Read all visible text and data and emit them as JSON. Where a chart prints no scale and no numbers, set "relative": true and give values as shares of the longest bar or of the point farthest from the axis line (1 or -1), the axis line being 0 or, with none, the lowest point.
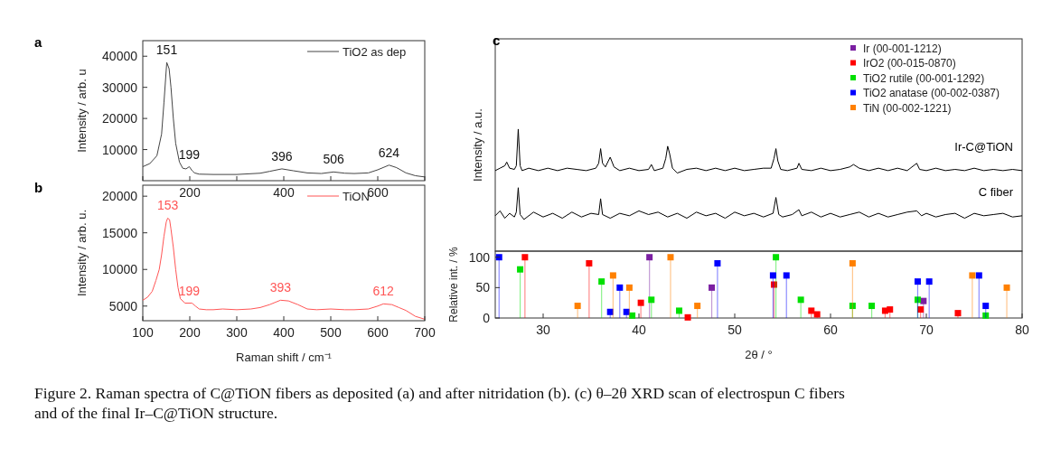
{
  "chart_data": [
    {
      "type": "line",
      "title": "a",
      "ylabel": "Intensity / arb. u",
      "xlim": [
        100,
        700
      ],
      "ylim": [
        0,
        45000
      ],
      "xticks": [
        {
          "value": 100,
          "label": null
        },
        200,
        {
          "value": 300,
          "label": null
        },
        400,
        {
          "value": 500,
          "label": null
        },
        600,
        {
          "value": 700,
          "label": null
        }
      ],
      "yticks": [
        10000,
        20000,
        30000,
        40000
      ],
      "legend": "top right",
      "marker": "none",
      "line_style": "solid",
      "series": [
        {
          "name": "TiO2 as dep",
          "color": "#444444",
          "x": [
            100,
            115,
            130,
            140,
            145,
            151,
            156,
            160,
            165,
            170,
            178,
            185,
            192,
            199,
            205,
            210,
            220,
            250,
            300,
            350,
            370,
            396,
            420,
            450,
            480,
            506,
            530,
            550,
            580,
            600,
            624,
            640,
            660,
            680,
            700
          ],
          "values": [
            4500,
            5500,
            8000,
            15000,
            25000,
            38000,
            36000,
            30000,
            20000,
            12000,
            6000,
            4000,
            3800,
            4500,
            3200,
            2500,
            2100,
            2000,
            2000,
            2400,
            3000,
            3800,
            3200,
            2500,
            2300,
            2800,
            2400,
            2300,
            2500,
            3500,
            5000,
            4200,
            2500,
            1600,
            1200
          ]
        }
      ],
      "annotations": [
        {
          "text": "151",
          "x": 151,
          "y": 38000
        },
        {
          "text": "199",
          "x": 199,
          "y": 4500
        },
        {
          "text": "396",
          "x": 396,
          "y": 3800
        },
        {
          "text": "506",
          "x": 506,
          "y": 2800
        },
        {
          "text": "624",
          "x": 624,
          "y": 5000
        }
      ]
    },
    {
      "type": "line",
      "title": "b",
      "xlabel": "Raman shift / cm⁻¹",
      "ylabel": "Intensity / arb. u.",
      "xlim": [
        100,
        700
      ],
      "ylim": [
        3000,
        21500
      ],
      "xticks": [
        100,
        200,
        300,
        400,
        500,
        600,
        700
      ],
      "yticks": [
        5000,
        10000,
        15000,
        20000
      ],
      "legend": "top right",
      "marker": "none",
      "line_style": "solid",
      "series": [
        {
          "name": "TiON",
          "color": "#ff5555",
          "x": [
            100,
            110,
            120,
            128,
            135,
            140,
            145,
            150,
            153,
            157,
            160,
            165,
            170,
            175,
            180,
            190,
            200,
            205,
            212,
            220,
            235,
            250,
            270,
            300,
            330,
            350,
            370,
            393,
            410,
            430,
            450,
            470,
            500,
            530,
            550,
            580,
            600,
            612,
            630,
            645,
            660,
            680,
            700
          ],
          "values": [
            5800,
            6200,
            7000,
            8500,
            10000,
            12000,
            14500,
            16500,
            17000,
            16800,
            15500,
            13000,
            10000,
            7500,
            6000,
            5400,
            5400,
            5400,
            5000,
            4600,
            4500,
            4500,
            4600,
            4500,
            4600,
            4800,
            5200,
            5800,
            5700,
            5200,
            4600,
            4500,
            4600,
            4500,
            4500,
            4600,
            5000,
            5300,
            5200,
            4800,
            4400,
            3600,
            3200
          ]
        }
      ],
      "annotations": [
        {
          "text": "153",
          "x": 153,
          "y": 17000
        },
        {
          "text": "199",
          "x": 199,
          "y": 5400
        },
        {
          "text": "393",
          "x": 393,
          "y": 5800
        },
        {
          "text": "612",
          "x": 612,
          "y": 5300
        }
      ]
    },
    {
      "type": "line",
      "title": "c",
      "ylabel": "Intensity / a.u.",
      "relative": true,
      "xlim": [
        25,
        80
      ],
      "marker": "none",
      "line_style": "solid",
      "series": [
        {
          "name": "Ir-C@TiON",
          "color": "#000000",
          "x": [
            25,
            25.5,
            26,
            26.2,
            26.5,
            27,
            27.2,
            27.4,
            27.6,
            27.8,
            28.5,
            29.5,
            30.5,
            31.5,
            32.5,
            33.5,
            34.5,
            35.5,
            35.8,
            36,
            36.2,
            36.5,
            37,
            37.4,
            38,
            39,
            40,
            41,
            41.3,
            41.6,
            42.5,
            42.8,
            43,
            43.2,
            43.5,
            44,
            45,
            46,
            47,
            48,
            49,
            50,
            51,
            52,
            53,
            53.8,
            54.1,
            54.3,
            54.5,
            54.8,
            55.5,
            56.5,
            56.7,
            57,
            58,
            59,
            60,
            61,
            62,
            62.4,
            63,
            64,
            65,
            66,
            67,
            68,
            69,
            69.3,
            70,
            71,
            72,
            73,
            74,
            75,
            76,
            77,
            78,
            79,
            80
          ],
          "values": [
            0.66,
            0.68,
            0.7,
            0.73,
            0.68,
            0.67,
            0.7,
            1,
            0.7,
            0.66,
            0.68,
            0.66,
            0.68,
            0.66,
            0.68,
            0.67,
            0.66,
            0.68,
            0.72,
            0.84,
            0.72,
            0.69,
            0.77,
            0.69,
            0.66,
            0.68,
            0.66,
            0.67,
            0.71,
            0.66,
            0.68,
            0.76,
            0.86,
            0.8,
            0.68,
            0.64,
            0.67,
            0.68,
            0.66,
            0.68,
            0.66,
            0.68,
            0.66,
            0.67,
            0.68,
            0.68,
            0.76,
            0.84,
            0.74,
            0.67,
            0.66,
            0.68,
            0.72,
            0.67,
            0.66,
            0.68,
            0.66,
            0.67,
            0.69,
            0.71,
            0.68,
            0.66,
            0.68,
            0.66,
            0.68,
            0.66,
            0.72,
            0.67,
            0.66,
            0.68,
            0.66,
            0.67,
            0.66,
            0.68,
            0.66,
            0.67,
            0.66,
            0.67,
            0.66
          ]
        },
        {
          "name": "C fiber",
          "color": "#000000",
          "x": [
            25,
            25.5,
            26,
            26.5,
            27,
            27.2,
            27.4,
            27.6,
            28,
            29,
            30,
            31,
            32,
            33,
            34,
            35,
            35.8,
            36,
            36.2,
            37,
            38,
            39,
            40,
            41,
            42,
            43,
            44,
            45,
            46,
            47,
            48,
            49,
            50,
            51,
            52,
            53,
            54,
            54.3,
            54.6,
            55,
            56,
            56.7,
            57,
            58,
            59,
            60,
            61,
            62,
            63,
            64,
            65,
            66,
            67,
            68,
            69,
            69.5,
            70,
            71,
            72,
            73,
            74,
            75,
            76,
            77,
            78,
            79,
            80
          ],
          "values": [
            0.29,
            0.33,
            0.27,
            0.31,
            0.28,
            0.32,
            0.52,
            0.3,
            0.26,
            0.32,
            0.28,
            0.31,
            0.27,
            0.32,
            0.28,
            0.31,
            0.3,
            0.43,
            0.3,
            0.27,
            0.31,
            0.29,
            0.33,
            0.3,
            0.32,
            0.28,
            0.31,
            0.27,
            0.32,
            0.29,
            0.31,
            0.27,
            0.32,
            0.29,
            0.31,
            0.28,
            0.31,
            0.44,
            0.3,
            0.28,
            0.3,
            0.34,
            0.29,
            0.32,
            0.28,
            0.31,
            0.28,
            0.3,
            0.32,
            0.28,
            0.31,
            0.28,
            0.3,
            0.32,
            0.33,
            0.29,
            0.31,
            0.28,
            0.3,
            0.31,
            0.27,
            0.31,
            0.29,
            0.3,
            0.31,
            0.28,
            0.29
          ]
        }
      ]
    },
    {
      "type": "lollipop",
      "xlabel": "2θ / °",
      "ylabel": "Relative int. / %",
      "xlim": [
        25,
        80
      ],
      "ylim": [
        0,
        110
      ],
      "xticks": [
        30,
        40,
        50,
        60,
        70,
        80
      ],
      "yticks": [
        0,
        50,
        100
      ],
      "legend": "top right",
      "marker": "square",
      "series": [
        {
          "name": "Ir (00-001-1212)",
          "color": "#7b1fa2",
          "x": [
            41.1,
            47.6,
            69.7
          ],
          "values": [
            100,
            50,
            28
          ]
        },
        {
          "name": "IrO2 (00-015-0870)",
          "color": "#ff0000",
          "x": [
            28.1,
            34.8,
            40.2,
            45.1,
            54.1,
            58,
            58.6,
            65.7,
            66.2,
            69.4,
            73.3
          ],
          "values": [
            100,
            90,
            25,
            1,
            55,
            12,
            6,
            12,
            14,
            14,
            8
          ]
        },
        {
          "name": "TiO2 rutile (00-001-1292)",
          "color": "#00e000",
          "x": [
            27.6,
            36.1,
            39.3,
            41.3,
            44.2,
            54.3,
            56.9,
            62.3,
            64.3,
            69.1,
            76.2
          ],
          "values": [
            80,
            60,
            4,
            30,
            12,
            100,
            30,
            20,
            20,
            30,
            4
          ]
        },
        {
          "name": "TiO2 anatase (00-002-0387)",
          "color": "#0000ff",
          "x": [
            25.4,
            37,
            38,
            38.7,
            48.2,
            54,
            55.4,
            69.1,
            70.3,
            75.5,
            76.2
          ],
          "values": [
            100,
            10,
            50,
            10,
            90,
            70,
            70,
            60,
            60,
            70,
            20
          ]
        },
        {
          "name": "TiN (00-002-1221)",
          "color": "#ff8000",
          "x": [
            33.6,
            37.3,
            39,
            43.3,
            46.1,
            62.3,
            74.8,
            78.4
          ],
          "values": [
            20,
            70,
            50,
            100,
            20,
            90,
            70,
            50
          ]
        }
      ],
      "annotations": [
        "Figure 2. Raman spectra of C@TiON fibers as deposited (a) and after nitridation (b). (c) θ–2θ XRD scan of electrospun C fibers and of the final Ir–C@TiON structure."
      ]
    }
  ]
}
